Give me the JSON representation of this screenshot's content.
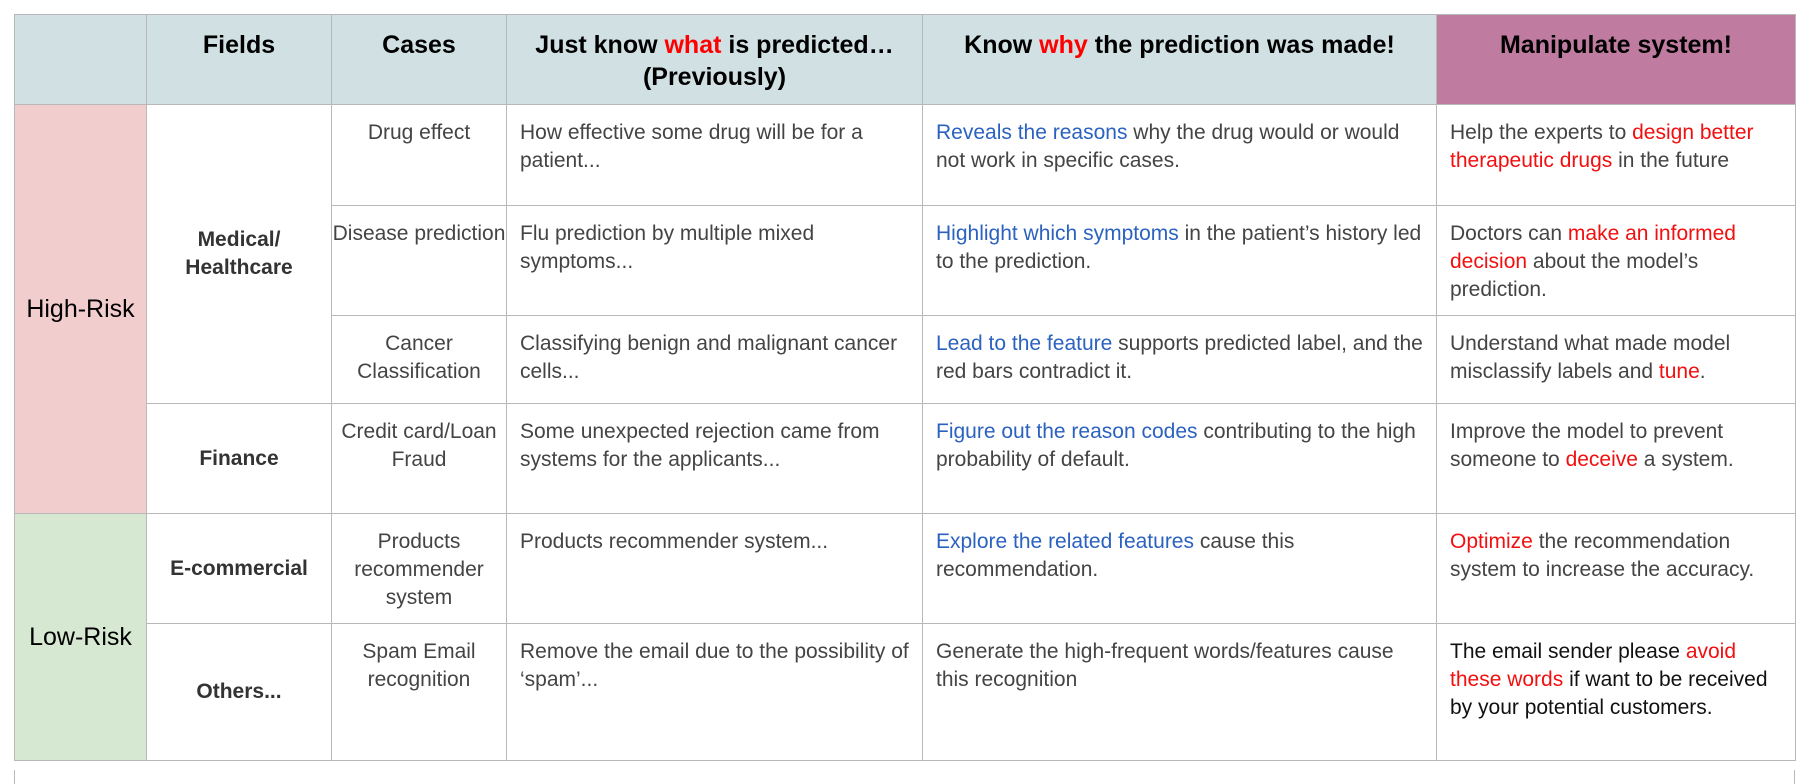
{
  "header": {
    "fields": "Fields",
    "cases": "Cases",
    "what_pre": "Just know ",
    "what_em": "what",
    "what_post": " is predicted…(Previously)",
    "why_pre": "Know ",
    "why_em": "why",
    "why_post": " the prediction was made!",
    "manipulate": "Manipulate system!"
  },
  "risk": {
    "high": "High-Risk",
    "low": "Low-Risk"
  },
  "fields": {
    "medical": "Medical/ Healthcare",
    "finance": "Finance",
    "ecommercial": "E-commercial",
    "others": "Others..."
  },
  "rows": [
    {
      "case": "Drug effect",
      "what": "How effective some drug will be for a patient...",
      "why_hl": "Reveals the reasons",
      "why_rest": " why the drug would or would not work in specific cases.",
      "manip_a": "Help the experts to ",
      "manip_hl": "design better therapeutic drugs",
      "manip_b": " in the future"
    },
    {
      "case": "Disease prediction",
      "what": "Flu prediction by multiple mixed symptoms...",
      "why_hl": "Highlight which symptoms",
      "why_rest": " in the patient’s history led to the prediction.",
      "manip_a": "Doctors can ",
      "manip_hl": "make an informed decision",
      "manip_b": " about the model’s prediction."
    },
    {
      "case": "Cancer Classification",
      "what": "Classifying benign and malignant cancer cells...",
      "why_hl": "Lead to the feature",
      "why_rest": " supports predicted label, and the red bars contradict it.",
      "manip_a": "Understand what made model misclassify labels and ",
      "manip_hl": "tune",
      "manip_b": "."
    },
    {
      "case": "Credit card/Loan Fraud",
      "what": "Some unexpected rejection came from systems for the applicants...",
      "why_hl": "Figure out the reason codes",
      "why_rest": " contributing to the high probability of default.",
      "manip_a": "Improve the model to prevent someone to ",
      "manip_hl": "deceive",
      "manip_b": " a system."
    },
    {
      "case": "Products recommender system",
      "what": "Products recommender system...",
      "why_hl": "Explore the related features",
      "why_rest": " cause this recommendation.",
      "manip_a": "",
      "manip_hl": "Optimize",
      "manip_b": " the recommendation system to increase the accuracy."
    },
    {
      "case": "Spam Email recognition",
      "what": "Remove the email due to the possibility of ‘spam’...",
      "why_hl": "",
      "why_rest": "Generate the high-frequent words/features cause this recognition",
      "manip_a": "The email sender please ",
      "manip_hl": "avoid these words",
      "manip_b": " if want to be received by your potential customers."
    }
  ]
}
